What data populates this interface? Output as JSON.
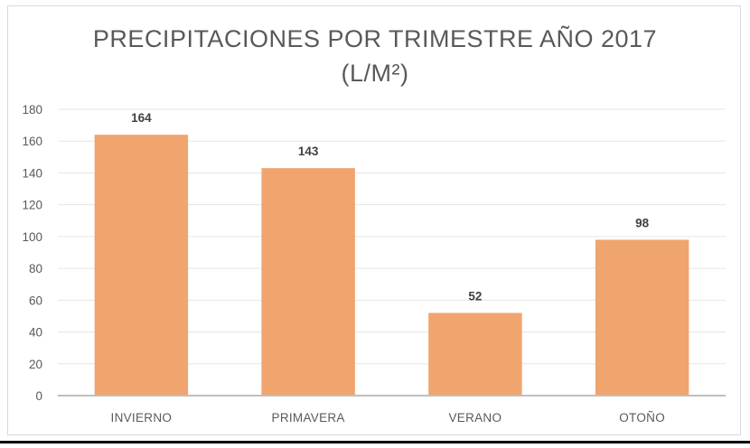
{
  "chart_data": {
    "type": "bar",
    "title_line1": "PRECIPITACIONES POR TRIMESTRE AÑO 2017",
    "title_line2": "(L/M²)",
    "categories": [
      "INVIERNO",
      "PRIMAVERA",
      "VERANO",
      "OTOÑO"
    ],
    "values": [
      164,
      143,
      52,
      98
    ],
    "ylim": [
      0,
      180
    ],
    "yticks": [
      0,
      20,
      40,
      60,
      80,
      100,
      120,
      140,
      160,
      180
    ],
    "grid": true,
    "legend": "none",
    "bar_color": "#f0a46e",
    "xlabel": "",
    "ylabel": ""
  }
}
